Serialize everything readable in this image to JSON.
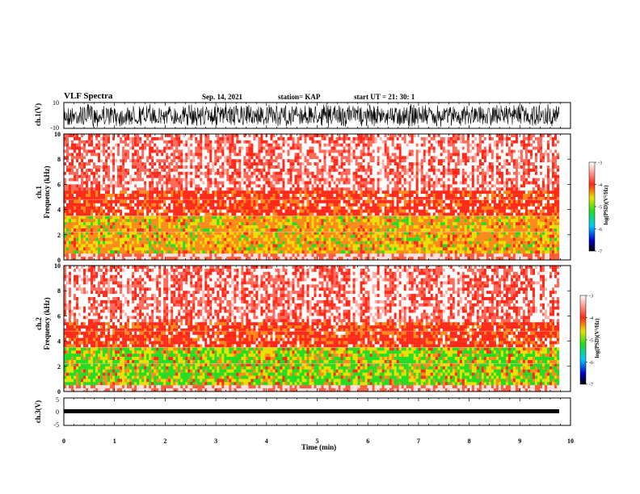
{
  "header": {
    "title": "VLF Spectra",
    "date": "Sep. 14, 2021",
    "station": "station= KAP",
    "start_ut": "start  UT  =   21: 30: 1"
  },
  "chart_data": [
    {
      "type": "line",
      "panel": "ch1-waveform",
      "ylabel": "ch.1(V)",
      "ylim": [
        -10,
        10
      ],
      "yticks": [
        "10",
        "-10"
      ],
      "xlim": [
        0,
        10
      ]
    },
    {
      "type": "heatmap",
      "panel": "ch1-spectrogram",
      "ylabel_line1": "ch.1",
      "ylabel_line2": "Frequency  (kHz)",
      "ylim": [
        0,
        10
      ],
      "yticks": [
        "0",
        "2",
        "4",
        "6",
        "8",
        "10"
      ],
      "xlim": [
        0,
        10
      ],
      "colorbar": {
        "label": "log(PSD)(V²/Hz)",
        "min": -7,
        "max": -3,
        "ticks": [
          "-3",
          "-4",
          "-5",
          "-6",
          "-7"
        ]
      }
    },
    {
      "type": "heatmap",
      "panel": "ch2-spectrogram",
      "ylabel_line1": "ch.2",
      "ylabel_line2": "Frequency  (kHz)",
      "ylim": [
        0,
        10
      ],
      "yticks": [
        "0",
        "2",
        "4",
        "6",
        "8",
        "10"
      ],
      "xlim": [
        0,
        10
      ],
      "colorbar": {
        "label": "log(PSD)(V²/Hz)",
        "min": -7,
        "max": -3,
        "ticks": [
          "-3",
          "-4",
          "-5",
          "-6",
          "-7"
        ]
      }
    },
    {
      "type": "line",
      "panel": "ch3-waveform",
      "ylabel": "ch.3(V)",
      "ylim": [
        -5,
        5
      ],
      "yticks": [
        "5",
        "0",
        "-5"
      ],
      "xlim": [
        0,
        10
      ],
      "xlabel": "Time  (min)",
      "xticks": [
        "0",
        "1",
        "2",
        "3",
        "4",
        "5",
        "6",
        "7",
        "8",
        "9",
        "10"
      ]
    }
  ],
  "colors": {
    "white": "#ffffff",
    "red": "#ff2a1a",
    "orange": "#ff8a1a",
    "yellow": "#e8e000",
    "green": "#22dd22",
    "cyan": "#00c8ff",
    "blue": "#0000cc",
    "black": "#000000"
  }
}
